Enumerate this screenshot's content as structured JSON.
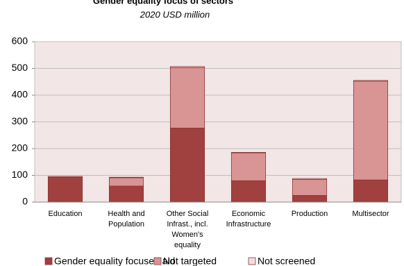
{
  "chart_data": {
    "type": "bar",
    "stacked": true,
    "title": "Gender equality focus of sectors",
    "subtitle": "2020 USD million",
    "categories": [
      "Education",
      "Health and Population",
      "Other Social Infrast., incl. Women's equality",
      "Economic Infrastructure",
      "Production",
      "Multisector"
    ],
    "series": [
      {
        "name": "Gender equality focused aid",
        "color": "#a0403f",
        "values": [
          93,
          60,
          277,
          80,
          25,
          83
        ]
      },
      {
        "name": "Not targeted",
        "color": "#d99594",
        "values": [
          3,
          31,
          226,
          104,
          60,
          369
        ]
      },
      {
        "name": "Not screened",
        "color": "#f2dcdb",
        "values": [
          0,
          2,
          4,
          2,
          3,
          3
        ]
      }
    ],
    "ylim": [
      0,
      600
    ],
    "yticks": [
      0,
      100,
      200,
      300,
      400,
      500,
      600
    ],
    "grid": true,
    "legend": "bottom"
  }
}
